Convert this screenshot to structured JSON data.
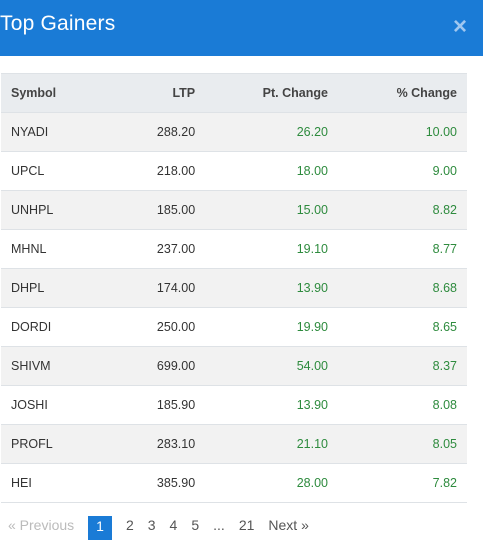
{
  "header": {
    "title": "Top Gainers",
    "close_icon": "close-icon"
  },
  "table": {
    "columns": [
      "Symbol",
      "LTP",
      "Pt. Change",
      "% Change"
    ],
    "rows": [
      {
        "symbol": "NYADI",
        "ltp": "288.20",
        "pt_change": "26.20",
        "pct_change": "10.00"
      },
      {
        "symbol": "UPCL",
        "ltp": "218.00",
        "pt_change": "18.00",
        "pct_change": "9.00"
      },
      {
        "symbol": "UNHPL",
        "ltp": "185.00",
        "pt_change": "15.00",
        "pct_change": "8.82"
      },
      {
        "symbol": "MHNL",
        "ltp": "237.00",
        "pt_change": "19.10",
        "pct_change": "8.77"
      },
      {
        "symbol": "DHPL",
        "ltp": "174.00",
        "pt_change": "13.90",
        "pct_change": "8.68"
      },
      {
        "symbol": "DORDI",
        "ltp": "250.00",
        "pt_change": "19.90",
        "pct_change": "8.65"
      },
      {
        "symbol": "SHIVM",
        "ltp": "699.00",
        "pt_change": "54.00",
        "pct_change": "8.37"
      },
      {
        "symbol": "JOSHI",
        "ltp": "185.90",
        "pt_change": "13.90",
        "pct_change": "8.08"
      },
      {
        "symbol": "PROFL",
        "ltp": "283.10",
        "pt_change": "21.10",
        "pct_change": "8.05"
      },
      {
        "symbol": "HEI",
        "ltp": "385.90",
        "pt_change": "28.00",
        "pct_change": "7.82"
      }
    ]
  },
  "pagination": {
    "prev": "« Previous",
    "pages": [
      "1",
      "2",
      "3",
      "4",
      "5",
      "...",
      "21"
    ],
    "active": "1",
    "next": "Next »"
  },
  "colors": {
    "header_bg": "#1a7bd6",
    "gain_text": "#2e8b3e",
    "header_row_bg": "#e9ecef"
  }
}
